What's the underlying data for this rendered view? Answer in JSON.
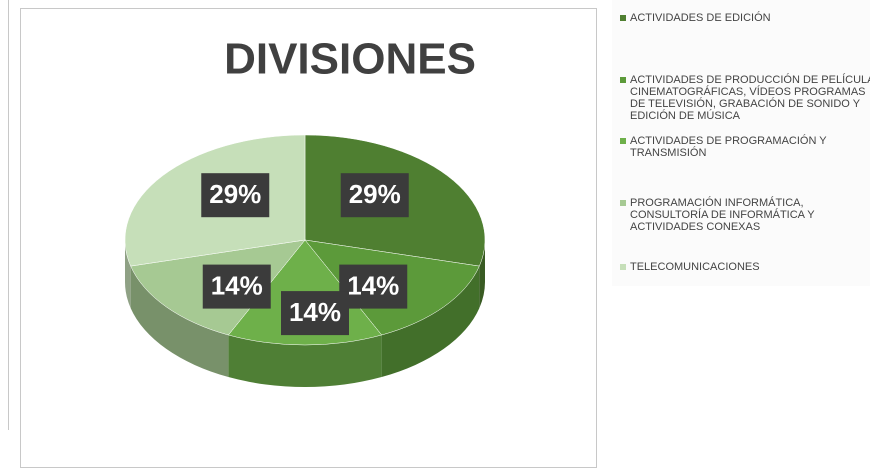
{
  "chart_data": {
    "type": "pie",
    "title": "DIVISIONES",
    "categories": [
      "ACTIVIDADES DE EDICIÓN",
      "ACTIVIDADES DE PRODUCCIÓN DE PELÍCULAS CINEMATOGRÁFICAS, VÍDEOS PROGRAMAS DE TELEVISIÓN, GRABACIÓN DE SONIDO Y EDICIÓN DE MÚSICA",
      "ACTIVIDADES DE PROGRAMACIÓN Y TRANSMISIÓN",
      "PROGRAMACIÓN INFORMÁTICA, CONSULTORÍA DE INFORMÁTICA Y ACTIVIDADES CONEXAS",
      "TELECOMUNICACIONES"
    ],
    "values": [
      29,
      14,
      14,
      14,
      29
    ],
    "value_labels": [
      "29%",
      "14%",
      "14%",
      "14%",
      "29%"
    ],
    "colors": [
      "#4f7f31",
      "#5c9a3a",
      "#6eb04a",
      "#a6c993",
      "#c6dfb9"
    ],
    "legend": "right"
  }
}
